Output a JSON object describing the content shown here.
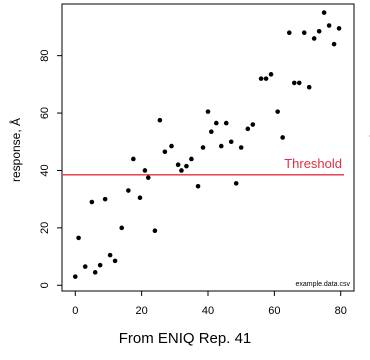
{
  "chart_data": {
    "type": "scatter",
    "ylabel": "response, Å",
    "right_ylabel_fragment": "response, Å",
    "xlim": [
      -4,
      84
    ],
    "ylim": [
      -2,
      98
    ],
    "x_ticks": [
      0,
      20,
      40,
      60,
      80
    ],
    "y_ticks": [
      0,
      20,
      40,
      60,
      80
    ],
    "grid": false,
    "threshold": {
      "y": 38.5,
      "label": "Threshold",
      "color": "#e03040"
    },
    "corner_note": "example.data.csv",
    "marker_color": "#000000",
    "points": [
      {
        "x": 0,
        "y": 3
      },
      {
        "x": 1,
        "y": 16.5
      },
      {
        "x": 3,
        "y": 6.5
      },
      {
        "x": 5,
        "y": 29
      },
      {
        "x": 6,
        "y": 4.5
      },
      {
        "x": 7.5,
        "y": 7
      },
      {
        "x": 9,
        "y": 30
      },
      {
        "x": 10.5,
        "y": 10.5
      },
      {
        "x": 12,
        "y": 8.5
      },
      {
        "x": 14,
        "y": 20
      },
      {
        "x": 16,
        "y": 33
      },
      {
        "x": 17.5,
        "y": 44
      },
      {
        "x": 19.5,
        "y": 30.5
      },
      {
        "x": 21,
        "y": 40
      },
      {
        "x": 22,
        "y": 37.5
      },
      {
        "x": 24,
        "y": 19
      },
      {
        "x": 25.5,
        "y": 57.5
      },
      {
        "x": 27,
        "y": 46.5
      },
      {
        "x": 29,
        "y": 48.5
      },
      {
        "x": 31,
        "y": 42
      },
      {
        "x": 32,
        "y": 40
      },
      {
        "x": 33.5,
        "y": 41.5
      },
      {
        "x": 35,
        "y": 44
      },
      {
        "x": 37,
        "y": 34.5
      },
      {
        "x": 38.5,
        "y": 48
      },
      {
        "x": 40,
        "y": 60.5
      },
      {
        "x": 41,
        "y": 53.5
      },
      {
        "x": 42.5,
        "y": 56.5
      },
      {
        "x": 44,
        "y": 48.5
      },
      {
        "x": 45.5,
        "y": 56.5
      },
      {
        "x": 47,
        "y": 50
      },
      {
        "x": 48.5,
        "y": 35.5
      },
      {
        "x": 50,
        "y": 48
      },
      {
        "x": 52,
        "y": 54.5
      },
      {
        "x": 53.5,
        "y": 56
      },
      {
        "x": 56,
        "y": 72
      },
      {
        "x": 57.5,
        "y": 72
      },
      {
        "x": 59,
        "y": 73.5
      },
      {
        "x": 61,
        "y": 60.5
      },
      {
        "x": 62.5,
        "y": 51.5
      },
      {
        "x": 64.5,
        "y": 88
      },
      {
        "x": 66,
        "y": 70.5
      },
      {
        "x": 67.5,
        "y": 70.5
      },
      {
        "x": 69,
        "y": 88
      },
      {
        "x": 70.5,
        "y": 69
      },
      {
        "x": 72,
        "y": 86
      },
      {
        "x": 73.5,
        "y": 88.5
      },
      {
        "x": 75,
        "y": 95
      },
      {
        "x": 76.5,
        "y": 90.5
      },
      {
        "x": 78,
        "y": 84
      },
      {
        "x": 79.5,
        "y": 89.5
      }
    ]
  },
  "caption": "From ENIQ Rep. 41"
}
